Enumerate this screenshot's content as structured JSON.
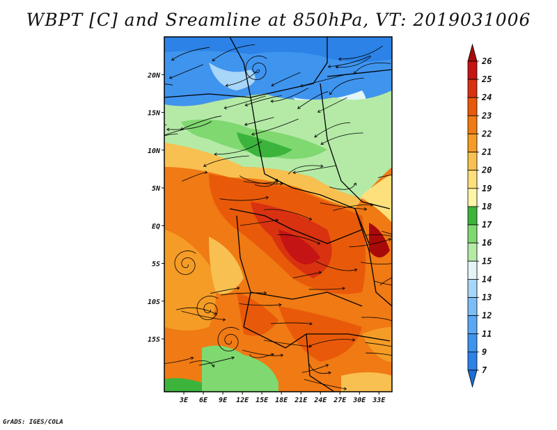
{
  "title": "WBPT [C] and Sreamline at 850hPa, VT: 2019031006",
  "credit": "GrADS: IGES/COLA",
  "map": {
    "lon_range": [
      0,
      35
    ],
    "lat_range": [
      -22,
      25
    ],
    "lon_ticks": [
      "3E",
      "6E",
      "9E",
      "12E",
      "15E",
      "18E",
      "21E",
      "24E",
      "27E",
      "30E",
      "33E"
    ],
    "lat_ticks": [
      "20N",
      "15N",
      "10N",
      "5N",
      "EQ",
      "5S",
      "10S",
      "15S"
    ]
  },
  "colorbar": {
    "levels": [
      "7",
      "9",
      "11",
      "12",
      "13",
      "14",
      "15",
      "16",
      "17",
      "18",
      "19",
      "20",
      "21",
      "22",
      "23",
      "24",
      "25",
      "26"
    ],
    "colors": [
      "#1e6ed8",
      "#2c82e6",
      "#3f94ee",
      "#5aa8f4",
      "#7dbdf6",
      "#a8d6f8",
      "#e4f5f6",
      "#b4eaa6",
      "#7fd870",
      "#3cb43c",
      "#fff5a8",
      "#fde07c",
      "#f8c050",
      "#f59c26",
      "#f07a14",
      "#e85a0a",
      "#d83210",
      "#c41414",
      "#a80a0a"
    ]
  }
}
